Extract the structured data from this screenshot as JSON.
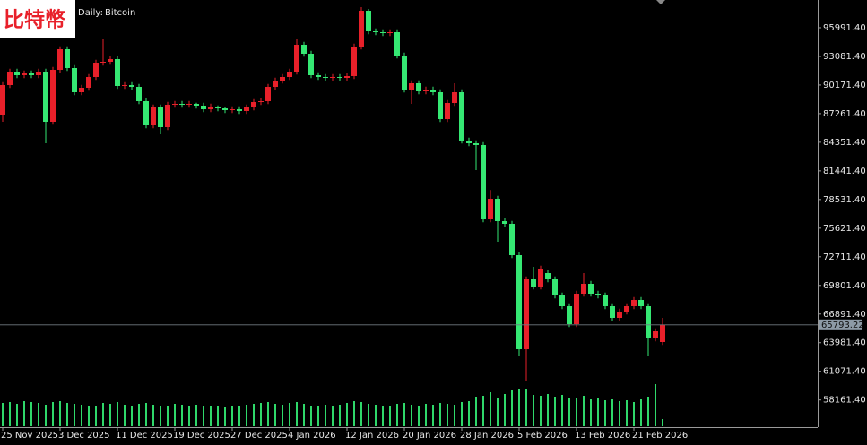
{
  "chart_data": {
    "type": "candlestick",
    "title": "比特幣",
    "period": "Daily:",
    "symbol": "Bitcoin",
    "categories": [
      "25 Nov 2025",
      null,
      null,
      null,
      null,
      null,
      null,
      null,
      "3 Dec 2025",
      null,
      null,
      null,
      null,
      null,
      null,
      null,
      "11 Dec 2025",
      null,
      null,
      null,
      null,
      null,
      null,
      null,
      "19 Dec 2025",
      null,
      null,
      null,
      null,
      null,
      null,
      null,
      "27 Dec 2025",
      null,
      null,
      null,
      null,
      null,
      null,
      null,
      "4 Jan 2026",
      null,
      null,
      null,
      null,
      null,
      null,
      null,
      "12 Jan 2026",
      null,
      null,
      null,
      null,
      null,
      null,
      null,
      "20 Jan 2026",
      null,
      null,
      null,
      null,
      null,
      null,
      null,
      "28 Jan 2026",
      null,
      null,
      null,
      null,
      null,
      null,
      null,
      "5 Feb 2026",
      null,
      null,
      null,
      null,
      null,
      null,
      null,
      "13 Feb 2026",
      null,
      null,
      null,
      null,
      null,
      null,
      null,
      "21 Feb 2026",
      null,
      null,
      null,
      null
    ],
    "open": [
      87162,
      90165,
      91530,
      91166,
      91348,
      91166,
      91530,
      86434,
      91712,
      93805,
      91894,
      89437,
      89892,
      90984,
      92440,
      92531,
      92804,
      90074,
      90165,
      89983,
      88527,
      86070,
      87890,
      85888,
      88163,
      88254,
      88163,
      88254,
      88072,
      87708,
      87981,
      87799,
      87617,
      87708,
      87526,
      87890,
      88436,
      88527,
      89983,
      90620,
      90984,
      91530,
      94260,
      93350,
      91166,
      90984,
      90893,
      90984,
      90893,
      91075,
      94078,
      97718,
      95625,
      95534,
      95443,
      95534,
      93168,
      89710,
      90347,
      89528,
      89710,
      89437,
      86707,
      88345,
      89437,
      84523,
      84250,
      84068,
      76515,
      78608,
      76333,
      76060,
      72875,
      63320,
      70418,
      69690,
      71055,
      70418,
      68780,
      67688,
      65868,
      68962,
      69963,
      68962,
      68780,
      67688,
      66505,
      67142,
      67688,
      68325,
      67688,
      64412,
      64048
    ],
    "high": [
      90465,
      91830,
      91830,
      91648,
      91648,
      91830,
      91830,
      92012,
      94105,
      94105,
      92194,
      90192,
      91284,
      92740,
      94806,
      93104,
      93104,
      90465,
      90465,
      90283,
      88827,
      88190,
      88190,
      88463,
      88554,
      88554,
      88554,
      88372,
      88372,
      88281,
      88099,
      87917,
      88008,
      88008,
      88190,
      88736,
      88827,
      90283,
      90920,
      91284,
      91830,
      94806,
      94560,
      93650,
      91466,
      91284,
      91284,
      91284,
      91375,
      94378,
      98082,
      97900,
      95925,
      95834,
      95834,
      95834,
      93468,
      90647,
      90647,
      90010,
      90010,
      89737,
      88645,
      90347,
      89737,
      84823,
      84550,
      84368,
      79500,
      78908,
      76633,
      76360,
      73175,
      70718,
      71692,
      71810,
      71355,
      70718,
      69080,
      67988,
      69262,
      71055,
      70263,
      69262,
      69080,
      67988,
      67442,
      67988,
      68625,
      68625,
      67988,
      65440,
      66505
    ],
    "low": [
      86434,
      89865,
      90866,
      90866,
      90866,
      90866,
      84250,
      86134,
      91412,
      91594,
      89137,
      89137,
      89592,
      90684,
      92140,
      92231,
      89774,
      89774,
      89683,
      88227,
      85770,
      85770,
      85160,
      85588,
      87863,
      87863,
      87863,
      87772,
      87408,
      87408,
      87499,
      87317,
      87317,
      87226,
      87226,
      87590,
      88136,
      88227,
      89683,
      90320,
      90684,
      91230,
      93050,
      90866,
      90684,
      90593,
      90593,
      90593,
      90593,
      90775,
      93778,
      95325,
      95234,
      95143,
      95143,
      92868,
      89410,
      88254,
      89228,
      89228,
      89137,
      86407,
      86407,
      88045,
      84223,
      83950,
      81520,
      76215,
      76215,
      74240,
      75760,
      72575,
      62592,
      60136,
      69390,
      69390,
      70118,
      68480,
      67388,
      65568,
      65568,
      68662,
      68662,
      68480,
      67388,
      66205,
      66205,
      66842,
      67388,
      67388,
      62592,
      64112,
      63748
    ],
    "close": [
      90165,
      91530,
      91166,
      91348,
      91166,
      91530,
      86434,
      91712,
      93805,
      91894,
      89437,
      89892,
      90984,
      92440,
      92531,
      92804,
      90074,
      90165,
      89983,
      88527,
      86070,
      87890,
      85888,
      88163,
      88254,
      88163,
      88254,
      88072,
      87708,
      87981,
      87799,
      87617,
      87708,
      87526,
      87890,
      88436,
      88527,
      89983,
      90620,
      90984,
      91530,
      94260,
      93350,
      91166,
      90984,
      90893,
      90984,
      90893,
      91075,
      94078,
      97718,
      95625,
      95534,
      95443,
      95534,
      93168,
      89710,
      90347,
      89528,
      89710,
      89437,
      86707,
      88345,
      89437,
      84523,
      84250,
      84068,
      76515,
      78608,
      76333,
      76060,
      72875,
      63320,
      70418,
      69690,
      71510,
      70418,
      68780,
      67688,
      65868,
      68962,
      69963,
      68962,
      68780,
      67688,
      66505,
      67142,
      67688,
      68325,
      67688,
      64412,
      65140,
      65793.22
    ],
    "volume": [
      26,
      27,
      25,
      28,
      27,
      26,
      24,
      27,
      28,
      26,
      25,
      24,
      22,
      23,
      26,
      25,
      27,
      24,
      22,
      25,
      26,
      24,
      23,
      22,
      25,
      24,
      23,
      24,
      22,
      23,
      22,
      21,
      23,
      22,
      24,
      25,
      26,
      27,
      25,
      24,
      26,
      27,
      25,
      22,
      23,
      24,
      22,
      24,
      26,
      28,
      27,
      25,
      24,
      23,
      22,
      25,
      26,
      24,
      23,
      25,
      24,
      26,
      25,
      24,
      27,
      28,
      33,
      34,
      38,
      32,
      36,
      40,
      42,
      41,
      35,
      34,
      36,
      33,
      35,
      31,
      32,
      34,
      30,
      31,
      29,
      30,
      28,
      29,
      27,
      30,
      33,
      47,
      8
    ],
    "up_color": "#e8202a",
    "down_color": "#35e873",
    "volume_color": "#2fd86a",
    "last_price": 65793.22,
    "ylim": [
      55494,
      98810
    ],
    "yticks": [
      {
        "value": 95991.4,
        "label": "95991.40"
      },
      {
        "value": 93081.4,
        "label": "93081.40"
      },
      {
        "value": 90171.4,
        "label": "90171.40"
      },
      {
        "value": 87261.4,
        "label": "87261.40"
      },
      {
        "value": 84351.4,
        "label": "84351.40"
      },
      {
        "value": 81441.4,
        "label": "81441.40"
      },
      {
        "value": 78531.4,
        "label": "78531.40"
      },
      {
        "value": 75621.4,
        "label": "75621.40"
      },
      {
        "value": 72711.4,
        "label": "72711.40"
      },
      {
        "value": 69801.4,
        "label": "69801.40"
      },
      {
        "value": 66891.4,
        "label": "66891.40"
      },
      {
        "value": 63981.4,
        "label": "63981.40"
      },
      {
        "value": 61071.4,
        "label": "61071.40"
      },
      {
        "value": 58161.4,
        "label": "58161.40"
      }
    ]
  }
}
